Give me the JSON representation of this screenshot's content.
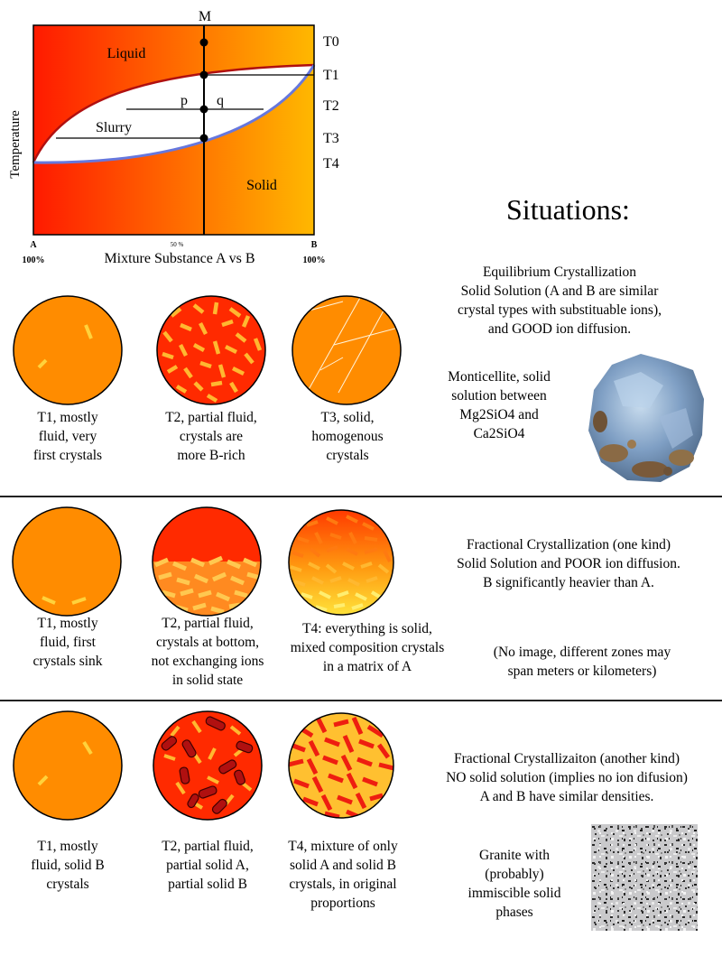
{
  "phase_diagram": {
    "top_label": "M",
    "y_axis_label": "Temperature",
    "x_axis_label": "Mixture Substance A vs B",
    "x_left_letter": "A",
    "x_left_pct": "100%",
    "x_mid_pct": "50 %",
    "x_right_letter": "B",
    "x_right_pct": "100%",
    "region_liquid": "Liquid",
    "region_slurry": "Slurry",
    "region_solid": "Solid",
    "point_p": "p",
    "point_q": "q",
    "temperatures": [
      "T0",
      "T1",
      "T2",
      "T3",
      "T4"
    ],
    "colors": {
      "hot": "#ff1a00",
      "warm": "#ffb800",
      "liquidus": "#b01010",
      "solidus": "#6677dd"
    }
  },
  "situations_title": "Situations:",
  "row1": {
    "description": [
      "Equilibrium Crystallization",
      "Solid Solution (A and B are similar",
      "crystal types with substituable ions),",
      "and GOOD ion diffusion."
    ],
    "mineral_text": [
      "Monticellite, solid",
      "solution between",
      "Mg2SiO4 and",
      "Ca2SiO4"
    ],
    "captions": [
      [
        "T1, mostly",
        "fluid, very",
        "first crystals"
      ],
      [
        "T2, partial fluid,",
        "crystals are",
        "more B-rich"
      ],
      [
        "T3, solid,",
        "homogenous",
        "crystals"
      ]
    ]
  },
  "row2": {
    "description": [
      "Fractional Crystallization (one kind)",
      "Solid Solution and POOR ion diffusion.",
      "B significantly heavier than A."
    ],
    "note": [
      "(No image, different zones may",
      "span meters or kilometers)"
    ],
    "captions": [
      [
        "T1, mostly",
        "fluid, first",
        "crystals sink"
      ],
      [
        "T2, partial fluid,",
        "crystals at bottom,",
        "not exchanging ions",
        "in solid state"
      ],
      [
        "T4: everything is solid,",
        "mixed composition crystals",
        "in a matrix of A"
      ]
    ]
  },
  "row3": {
    "description": [
      "Fractional Crystallizaiton (another kind)",
      "NO solid solution (implies no ion difusion)",
      "A and B have similar densities."
    ],
    "granite_text": [
      "Granite with",
      "(probably)",
      "immiscible solid",
      "phases"
    ],
    "captions": [
      [
        "T1, mostly",
        "fluid, solid B",
        "crystals"
      ],
      [
        "T2, partial fluid,",
        "partial solid A,",
        "partial solid B"
      ],
      [
        "T4, mixture of only",
        "solid A and solid B",
        "crystals, in original",
        "proportions"
      ]
    ]
  }
}
